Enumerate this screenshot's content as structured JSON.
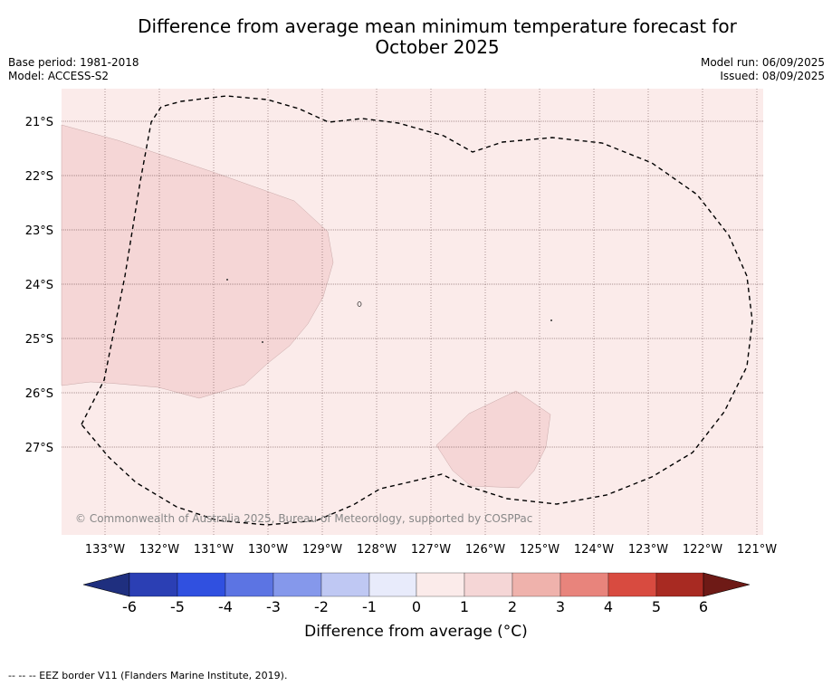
{
  "title": "Difference from average mean minimum temperature forecast for October 2025",
  "title_lines": [
    "Difference from average mean minimum temperature forecast for",
    "October 2025"
  ],
  "base_period": "Base period: 1981-2018",
  "model": "Model: ACCESS-S2",
  "model_run": "Model run: 06/09/2025",
  "issued": "Issued: 08/09/2025",
  "copyright": "© Commonwealth of Australia 2025, Bureau of Meteorology, supported by COSPPac",
  "footer": "-- -- -- EEZ border V11 (Flanders Marine Institute, 2019).",
  "map": {
    "latitude_labels": [
      "21°S",
      "22°S",
      "23°S",
      "24°S",
      "25°S",
      "26°S",
      "27°S"
    ],
    "longitude_labels": [
      "133°W",
      "132°W",
      "131°W",
      "130°W",
      "129°W",
      "128°W",
      "127°W",
      "126°W",
      "125°W",
      "124°W",
      "123°W",
      "122°W",
      "121°W"
    ],
    "region_colors": {
      "background": "#fbebea",
      "warm_patch": "#f5d6d6"
    }
  },
  "colorbar": {
    "label": "Difference from average (°C)",
    "ticks": [
      "-6",
      "-5",
      "-4",
      "-3",
      "-2",
      "-1",
      "0",
      "1",
      "2",
      "3",
      "4",
      "5",
      "6"
    ],
    "colors": [
      "#1f2f7f",
      "#2b3fb4",
      "#3050e0",
      "#5c74e3",
      "#8598eb",
      "#bfc8f3",
      "#e8ebfb",
      "#fbebea",
      "#f5d6d6",
      "#efb2ac",
      "#e8847c",
      "#d84b40",
      "#a82a22",
      "#6e1a16"
    ]
  }
}
